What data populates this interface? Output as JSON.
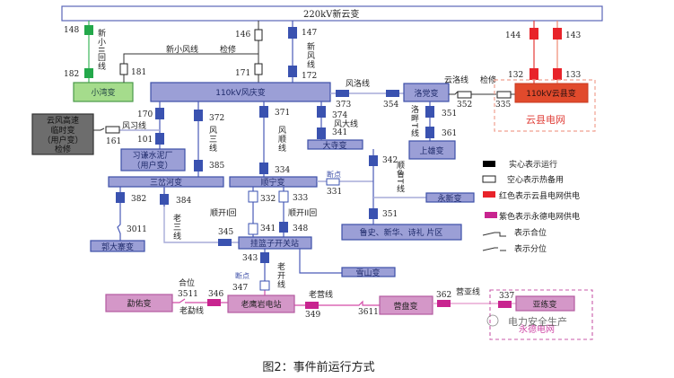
{
  "stations": {
    "xinyun": "220kV新云变",
    "fengqing": "110kV风庆变",
    "xiaowan": "小湾变",
    "yunxian": "110kV云县变",
    "yunxian_grid": "云县电网",
    "luodang": "洛党变",
    "shangxiong": "上雄变",
    "dasi": "大寺变",
    "yunfeng_line1": "云风高速",
    "yunfeng_line2": "临时变",
    "yunfeng_line3": "（用户变）",
    "yunfeng_line4": "检修",
    "xiqian_line1": "习谦水泥厂",
    "xiqian_line2": "（用户变）",
    "sanchahe": "三岔河变",
    "shunning": "顺宁变",
    "yongxin": "永新变",
    "lushi": "鲁史、新华、诗礼 片区",
    "guodazhai": "郭大寨变",
    "gualanzi": "挂篮子开关站",
    "xueshan": "雪山变",
    "mengyou": "勐佑变",
    "laoyingyan": "老鹰岩电站",
    "yingpan": "营盘变",
    "yalian": "亚练变",
    "yongde_grid": "永德电网"
  },
  "lines": {
    "xinxiao2": "新小II回线",
    "xinxiaofeng": "新小风线",
    "xinxiaofeng_status": "检修",
    "xinfeng": "新风线",
    "fengluo": "风洛线",
    "yunluo": "云洛线",
    "yunluo_status": "检修",
    "fengxi": "风习线",
    "fengsan": "风三线",
    "fengshun": "风顺线",
    "fengda": "风大线",
    "luopan": "洛畔T线",
    "shunlu": "顺鲁T线",
    "laosan": "老三线",
    "shunkai1": "顺开Ⅰ回",
    "shunkai2": "顺开II回",
    "laokai": "老开线",
    "laomeng": "老勐线",
    "laoying": "老营线",
    "yingya": "营亚线",
    "breakpoint": "断点",
    "closed_pos": "合位"
  },
  "breakers": {
    "b148": "148",
    "b182": "182",
    "b146": "146",
    "b171": "171",
    "b181": "181",
    "b147": "147",
    "b172": "172",
    "b144": "144",
    "b143": "143",
    "b132": "132",
    "b133": "133",
    "b373": "373",
    "b354": "354",
    "b352": "352",
    "b335": "335",
    "b351a": "351",
    "b361": "361",
    "b170": "170",
    "b101": "101",
    "b161": "161",
    "b372": "372",
    "b385": "385",
    "b371": "371",
    "b334": "334",
    "b374": "374",
    "b341a": "341",
    "b342": "342",
    "b351b": "351",
    "b331": "331",
    "b382": "382",
    "b3011": "3011",
    "b384": "384",
    "b345": "345",
    "b332": "332",
    "b333": "333",
    "b341b": "341",
    "b348": "348",
    "b343": "343",
    "b347": "347",
    "b3511": "3511",
    "b346": "346",
    "b349": "349",
    "b3611": "3611",
    "b362": "362",
    "b337": "337"
  },
  "legend": {
    "solid": "实心表示运行",
    "hollow": "空心表示热备用",
    "red": "红色表示云县电网供电",
    "purple": "紫色表示永德电网供电",
    "closed": "表示合位",
    "open": "表示分位"
  },
  "colors": {
    "fengqing_grid": "#3a52b0",
    "yunxian_grid": "#e8232a",
    "yongde_grid": "#c8248f",
    "xiaowan": "#23a84a"
  },
  "watermark": "电力安全生产",
  "caption": "图2：事件前运行方式"
}
